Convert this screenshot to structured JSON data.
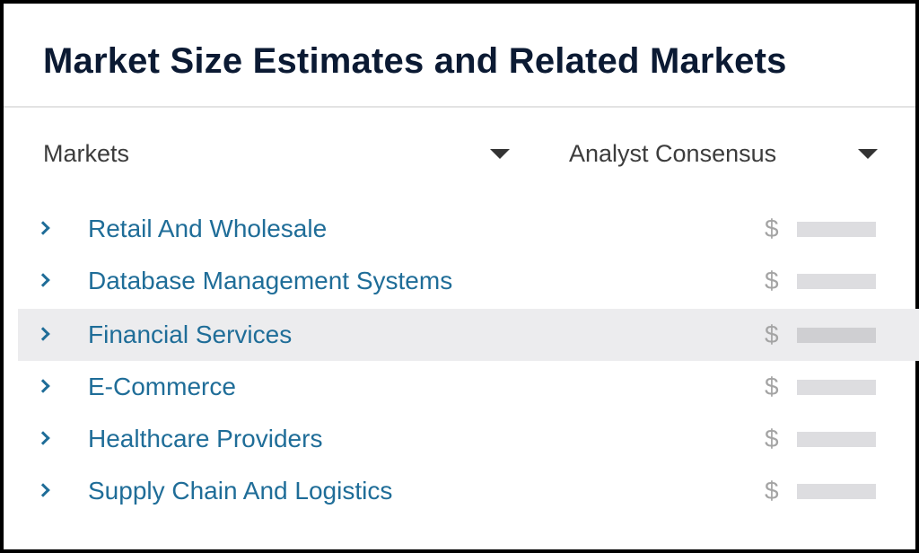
{
  "header": {
    "title": "Market Size Estimates and Related Markets"
  },
  "filters": {
    "markets_label": "Markets",
    "consensus_label": "Analyst Consensus"
  },
  "markets": [
    {
      "label": "Retail And Wholesale",
      "currency": "$"
    },
    {
      "label": "Database Management Systems",
      "currency": "$"
    },
    {
      "label": "Financial Services",
      "currency": "$"
    },
    {
      "label": "E-Commerce",
      "currency": "$"
    },
    {
      "label": "Healthcare Providers",
      "currency": "$"
    },
    {
      "label": "Supply Chain And Logistics",
      "currency": "$"
    }
  ],
  "colors": {
    "title": "#0b1a33",
    "link": "#1f6d98",
    "highlight_row": "#ececee",
    "placeholder_bar": "#dddde0"
  },
  "icons": {
    "row_expand": "chevron-right-icon",
    "dropdown": "caret-down-icon"
  }
}
